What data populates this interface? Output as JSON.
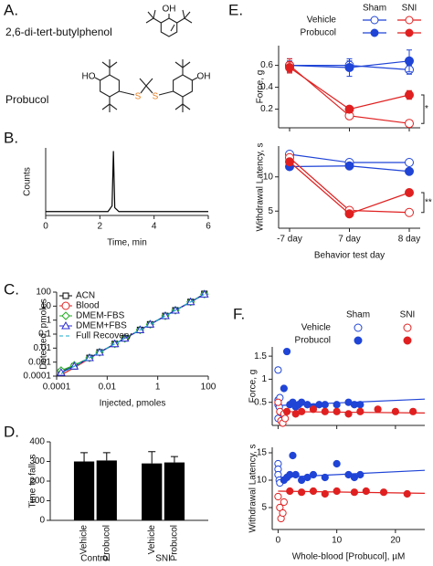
{
  "labels": [
    "A.",
    "B.",
    "C.",
    "D.",
    "E.",
    "F."
  ],
  "compounds": [
    {
      "name": "2,6-di-tert-butylphenol",
      "atoms": [
        "OH"
      ]
    },
    {
      "name": "Probucol",
      "atoms": [
        "HO",
        "S",
        "S",
        "OH"
      ]
    }
  ],
  "chart_data": [
    {
      "type": "line",
      "xlabel": "Time, min",
      "ylabel": "Counts",
      "x": [
        0,
        2.3,
        2.45,
        2.5,
        2.55,
        2.7,
        6
      ],
      "series": [
        {
          "color": "#000000",
          "values": [
            0.06,
            0.06,
            0.15,
            1,
            0.12,
            0.06,
            0.06
          ]
        }
      ],
      "xlim": [
        0,
        6
      ],
      "xticks": [
        0,
        2,
        4,
        6
      ],
      "ylim": [
        0,
        1.05
      ]
    },
    {
      "type": "line",
      "xlabel": "Injected, pmoles",
      "ylabel": "Detected, pmoles",
      "xscale": "log",
      "yscale": "log",
      "legend": "upper left",
      "x": [
        0.00015,
        0.0005,
        0.002,
        0.005,
        0.02,
        0.05,
        0.2,
        0.5,
        2,
        5,
        20,
        70
      ],
      "series": [
        {
          "name": "ACN",
          "color": "#000000",
          "marker": "square",
          "filled": false,
          "values": [
            0.0002,
            0.0005,
            0.002,
            0.005,
            0.02,
            0.05,
            0.2,
            0.5,
            2,
            5,
            20,
            75
          ]
        },
        {
          "name": "Blood",
          "color": "#e02020",
          "marker": "circle",
          "filled": false,
          "values": [
            0.00012,
            0.0004,
            0.0018,
            0.005,
            0.019,
            0.05,
            0.19,
            0.5,
            1.9,
            5,
            19,
            70
          ]
        },
        {
          "name": "DMEM-FBS",
          "color": "#22aa22",
          "marker": "diamond",
          "filled": false,
          "values": [
            0.00025,
            0.0006,
            0.002,
            0.005,
            0.02,
            0.05,
            0.2,
            0.5,
            2,
            5,
            20,
            72
          ]
        },
        {
          "name": "DMEM+FBS",
          "color": "#2a2ad0",
          "marker": "triangle",
          "filled": false,
          "values": [
            0.00018,
            0.0005,
            0.002,
            0.005,
            0.02,
            0.05,
            0.2,
            0.5,
            2,
            5,
            20,
            70
          ]
        },
        {
          "name": "Full Recovery",
          "color": "#17a8c8",
          "dashed": true,
          "values": [
            0.00015,
            0.0005,
            0.002,
            0.005,
            0.02,
            0.05,
            0.2,
            0.5,
            2,
            5,
            20,
            70
          ]
        }
      ],
      "xlim": [
        0.0001,
        100
      ],
      "xticks": [
        0.0001,
        0.01,
        1,
        100
      ],
      "ylim": [
        0.0001,
        100
      ],
      "yticks": [
        0.0001,
        0.001,
        0.01,
        0.1,
        1,
        10,
        100
      ]
    },
    {
      "type": "bar",
      "ylabel": "Time to fall, s",
      "color": "#000000",
      "categories": [
        "Vehicle",
        "Probucol",
        "Vehicle",
        "Probucol"
      ],
      "groups": [
        "Control",
        "SNI"
      ],
      "values": [
        300,
        305,
        290,
        295
      ],
      "errors": [
        45,
        40,
        60,
        30
      ],
      "ylim": [
        0,
        400
      ],
      "yticks": [
        0,
        100,
        200,
        300,
        400
      ]
    },
    {
      "type": "line",
      "xlabel": "Behavior test day",
      "categories": [
        "-7 day",
        "7 day",
        "8 day"
      ],
      "legend": {
        "columns": [
          "Sham",
          "SNI"
        ],
        "rows": [
          "Vehicle",
          "Probucol"
        ]
      },
      "subplots": [
        {
          "ylabel": "Force, g",
          "ylim": [
            0.03,
            0.78
          ],
          "yticks": [
            0.2,
            0.4,
            0.6
          ],
          "annotation": "*",
          "series": [
            {
              "color": "#1f44d6",
              "marker": "circle",
              "filled": false,
              "values": [
                0.6,
                0.6,
                0.56
              ],
              "errors": [
                0.04,
                0.04,
                0.04
              ]
            },
            {
              "color": "#1f44d6",
              "marker": "circle",
              "filled": true,
              "values": [
                0.6,
                0.58,
                0.64
              ],
              "errors": [
                0.06,
                0.08,
                0.1
              ]
            },
            {
              "color": "#e02020",
              "marker": "circle",
              "filled": false,
              "values": [
                0.6,
                0.14,
                0.07
              ],
              "errors": [
                0.06,
                0.02,
                0.01
              ]
            },
            {
              "color": "#e02020",
              "marker": "circle",
              "filled": true,
              "values": [
                0.58,
                0.2,
                0.33
              ],
              "errors": [
                0.05,
                0.02,
                0.04
              ]
            }
          ]
        },
        {
          "ylabel": "Withdrawal Latency, s",
          "ylim": [
            2.5,
            14.5
          ],
          "yticks": [
            5,
            10
          ],
          "annotation": "**",
          "series": [
            {
              "color": "#1f44d6",
              "marker": "circle",
              "filled": false,
              "values": [
                13.3,
                12.1,
                12.1
              ]
            },
            {
              "color": "#1f44d6",
              "marker": "circle",
              "filled": true,
              "values": [
                11.5,
                11.6,
                10.8
              ]
            },
            {
              "color": "#e02020",
              "marker": "circle",
              "filled": false,
              "values": [
                12.8,
                5.1,
                4.8
              ]
            },
            {
              "color": "#e02020",
              "marker": "circle",
              "filled": true,
              "values": [
                12.2,
                4.6,
                7.7
              ]
            }
          ]
        }
      ]
    },
    {
      "type": "scatter",
      "xlabel": "Whole-blood [Probucol], µM",
      "legend": {
        "columns": [
          "Sham",
          "SNI"
        ],
        "rows": [
          "Vehicle",
          "Probucol"
        ]
      },
      "xlim": [
        -1,
        25
      ],
      "xticks": [
        0,
        10,
        20
      ],
      "subplots": [
        {
          "ylabel": "Force, g",
          "ylim": [
            0,
            1.7
          ],
          "yticks": [
            0.5,
            1,
            1.5
          ],
          "series": [
            {
              "color": "#1f44d6",
              "filled": false,
              "x": [
                0,
                0,
                0,
                0.2,
                0.3,
                0
              ],
              "values": [
                1.2,
                0.55,
                0.45,
                0.4,
                0.6,
                0.15
              ]
            },
            {
              "color": "#1f44d6",
              "filled": true,
              "x": [
                1,
                1.5,
                2,
                2.5,
                3,
                3.5,
                4,
                5,
                6,
                7,
                8,
                10,
                12,
                13,
                14
              ],
              "values": [
                0.8,
                1.6,
                0.45,
                0.5,
                0.4,
                0.45,
                0.5,
                0.45,
                0.4,
                0.45,
                0.45,
                0.45,
                0.5,
                0.45,
                0.45
              ]
            },
            {
              "color": "#e02020",
              "filled": false,
              "x": [
                0,
                0.3,
                0.5,
                0.8,
                1,
                1.2
              ],
              "values": [
                0.5,
                0.3,
                0.1,
                0.05,
                0.25,
                0.15
              ]
            },
            {
              "color": "#e02020",
              "filled": true,
              "x": [
                1.5,
                3,
                4,
                6,
                8,
                10,
                12,
                14,
                17,
                20,
                23
              ],
              "values": [
                0.3,
                0.25,
                0.3,
                0.35,
                0.3,
                0.3,
                0.25,
                0.3,
                0.35,
                0.3,
                0.3
              ]
            }
          ],
          "fits": [
            {
              "color": "#1f44d6",
              "x": [
                0,
                25
              ],
              "values": [
                0.43,
                0.57
              ]
            },
            {
              "color": "#e02020",
              "x": [
                0,
                25
              ],
              "values": [
                0.3,
                0.27
              ]
            }
          ]
        },
        {
          "ylabel": "Withdrawal Latency, s",
          "ylim": [
            1,
            16
          ],
          "yticks": [
            5,
            10,
            15
          ],
          "series": [
            {
              "color": "#1f44d6",
              "filled": false,
              "x": [
                0,
                0,
                0,
                0.2,
                0.3
              ],
              "values": [
                13,
                12,
                11,
                10,
                9.5
              ]
            },
            {
              "color": "#1f44d6",
              "filled": true,
              "x": [
                1,
                1.5,
                2,
                2.5,
                3,
                4,
                5,
                6,
                8,
                10,
                12,
                13,
                14
              ],
              "values": [
                10,
                10.5,
                11,
                14.5,
                11,
                10,
                10.5,
                11,
                10.5,
                13,
                11,
                10.5,
                11
              ]
            },
            {
              "color": "#e02020",
              "filled": false,
              "x": [
                0,
                0.3,
                0.5,
                0.8,
                1
              ],
              "values": [
                7,
                5,
                3,
                4,
                6
              ]
            },
            {
              "color": "#e02020",
              "filled": true,
              "x": [
                2,
                4,
                6,
                8,
                10,
                13,
                15,
                18,
                22
              ],
              "values": [
                8,
                7.8,
                8,
                7.5,
                8,
                7.8,
                8,
                7.8,
                7.5
              ]
            }
          ],
          "fits": [
            {
              "color": "#1f44d6",
              "x": [
                0,
                25
              ],
              "values": [
                10.5,
                11.8
              ]
            },
            {
              "color": "#e02020",
              "x": [
                0,
                25
              ],
              "values": [
                8,
                7.6
              ]
            }
          ]
        }
      ]
    }
  ]
}
